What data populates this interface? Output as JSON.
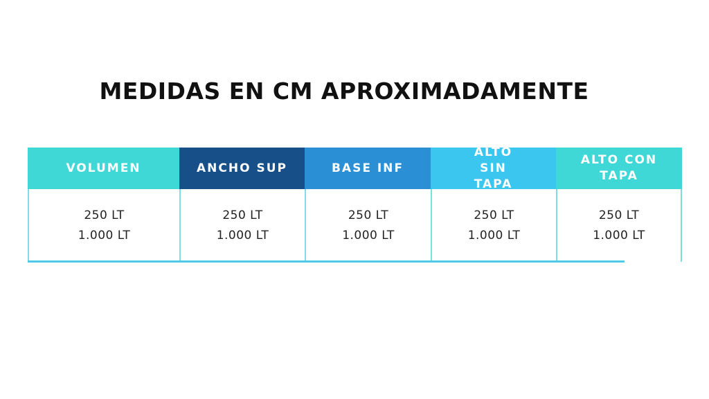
{
  "title": "MEDIDAS EN CM APROXIMADAMENTE",
  "columns": [
    {
      "header": "VOLUMEN",
      "color": "#40d8d6",
      "values": [
        "250 LT",
        "1.000 LT"
      ]
    },
    {
      "header": "ANCHO SUP",
      "color": "#175089",
      "values": [
        "250 LT",
        "1.000 LT"
      ]
    },
    {
      "header": "BASE INF",
      "color": "#2b8fd6",
      "values": [
        "250 LT",
        "1.000 LT"
      ]
    },
    {
      "header": "ALTO SIN TAPA",
      "color": "#3ac6ee",
      "values": [
        "250 LT",
        "1.000 LT"
      ]
    },
    {
      "header": "ALTO CON TAPA",
      "color": "#40d8d6",
      "values": [
        "250 LT",
        "1.000 LT"
      ]
    }
  ]
}
